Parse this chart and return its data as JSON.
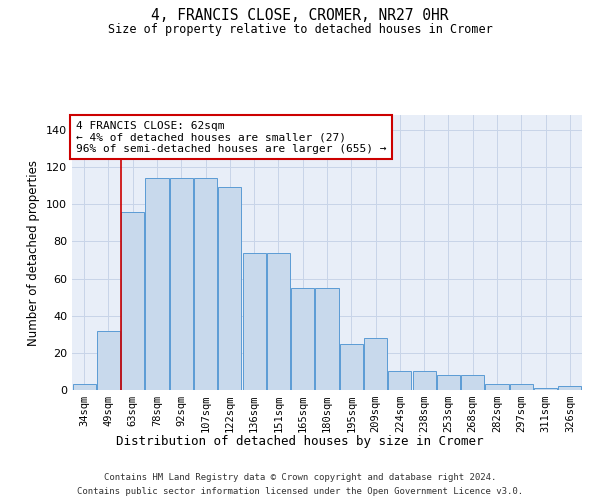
{
  "title": "4, FRANCIS CLOSE, CROMER, NR27 0HR",
  "subtitle": "Size of property relative to detached houses in Cromer",
  "xlabel": "Distribution of detached houses by size in Cromer",
  "ylabel": "Number of detached properties",
  "categories": [
    "34sqm",
    "49sqm",
    "63sqm",
    "78sqm",
    "92sqm",
    "107sqm",
    "122sqm",
    "136sqm",
    "151sqm",
    "165sqm",
    "180sqm",
    "195sqm",
    "209sqm",
    "224sqm",
    "238sqm",
    "253sqm",
    "268sqm",
    "282sqm",
    "297sqm",
    "311sqm",
    "326sqm"
  ],
  "bar_heights": [
    3,
    32,
    96,
    114,
    114,
    114,
    109,
    74,
    74,
    55,
    55,
    25,
    28,
    10,
    10,
    8,
    8,
    3,
    3,
    1,
    2
  ],
  "ylim": [
    0,
    148
  ],
  "yticks": [
    0,
    20,
    40,
    60,
    80,
    100,
    120,
    140
  ],
  "bar_color_fill": "#c8d9ec",
  "bar_color_edge": "#5b9bd5",
  "grid_color": "#c8d4e8",
  "bg_color": "#e8eef8",
  "annotation_box_color": "#cc0000",
  "marker_line_color": "#cc0000",
  "annotation_text_line1": "4 FRANCIS CLOSE: 62sqm",
  "annotation_text_line2": "← 4% of detached houses are smaller (27)",
  "annotation_text_line3": "96% of semi-detached houses are larger (655) →",
  "footnote1": "Contains HM Land Registry data © Crown copyright and database right 2024.",
  "footnote2": "Contains public sector information licensed under the Open Government Licence v3.0."
}
